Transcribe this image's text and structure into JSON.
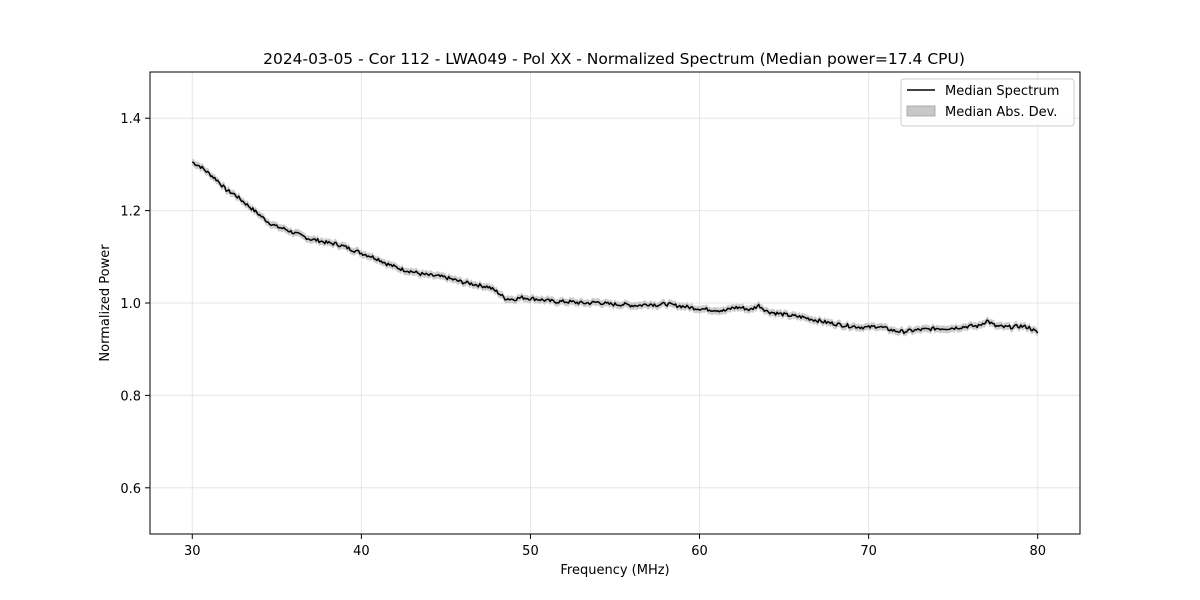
{
  "chart_data": {
    "type": "line",
    "title": "2024-03-05 - Cor 112 - LWA049 - Pol XX - Normalized Spectrum (Median power=17.4 CPU)",
    "xlabel": "Frequency (MHz)",
    "ylabel": "Normalized Power",
    "xlim": [
      27.5,
      82.5
    ],
    "ylim": [
      0.5,
      1.5
    ],
    "x_ticks": [
      30,
      40,
      50,
      60,
      70,
      80
    ],
    "y_ticks": [
      0.6,
      0.8,
      1.0,
      1.2,
      1.4
    ],
    "x_tick_labels": [
      "30",
      "40",
      "50",
      "60",
      "70",
      "80"
    ],
    "y_tick_labels": [
      "0.6",
      "0.8",
      "1.0",
      "1.2",
      "1.4"
    ],
    "grid": true,
    "legend_position": "top-right",
    "legend": [
      "Median Spectrum",
      "Median Abs. Dev."
    ],
    "colors": {
      "line": "#000000",
      "band": "#c8c8c8",
      "grid": "#e6e6e6"
    },
    "series": [
      {
        "name": "Median Spectrum",
        "x": [
          30,
          30.5,
          31,
          31.5,
          32,
          32.5,
          33,
          33.5,
          34,
          34.5,
          35,
          35.5,
          36,
          36.5,
          37,
          37.5,
          38,
          38.5,
          39,
          39.5,
          40,
          40.5,
          41,
          41.5,
          42,
          42.5,
          43,
          43.5,
          44,
          44.5,
          45,
          45.5,
          46,
          46.5,
          47,
          47.5,
          48,
          48.5,
          49,
          49.5,
          50,
          50.5,
          51,
          51.5,
          52,
          52.5,
          53,
          53.5,
          54,
          54.5,
          55,
          55.5,
          56,
          56.5,
          57,
          57.5,
          58,
          58.5,
          59,
          59.5,
          60,
          60.5,
          61,
          61.5,
          62,
          62.5,
          63,
          63.5,
          64,
          64.5,
          65,
          65.5,
          66,
          66.5,
          67,
          67.5,
          68,
          68.5,
          69,
          69.5,
          70,
          70.5,
          71,
          71.5,
          72,
          72.5,
          73,
          73.5,
          74,
          74.5,
          75,
          75.5,
          76,
          76.5,
          77,
          77.5,
          78,
          78.5,
          79,
          79.5,
          80
        ],
        "y": [
          1.305,
          1.295,
          1.28,
          1.265,
          1.245,
          1.235,
          1.22,
          1.205,
          1.19,
          1.175,
          1.165,
          1.16,
          1.152,
          1.145,
          1.138,
          1.135,
          1.13,
          1.128,
          1.122,
          1.115,
          1.108,
          1.102,
          1.095,
          1.085,
          1.078,
          1.072,
          1.068,
          1.063,
          1.06,
          1.058,
          1.055,
          1.05,
          1.045,
          1.042,
          1.038,
          1.035,
          1.025,
          1.01,
          1.008,
          1.012,
          1.01,
          1.008,
          1.005,
          1.003,
          1.003,
          1.002,
          1.0,
          1.0,
          1.002,
          0.998,
          0.997,
          0.997,
          0.995,
          0.995,
          0.998,
          0.996,
          0.998,
          0.995,
          0.993,
          0.99,
          0.988,
          0.986,
          0.985,
          0.983,
          0.99,
          0.99,
          0.985,
          0.995,
          0.982,
          0.978,
          0.975,
          0.972,
          0.97,
          0.966,
          0.962,
          0.958,
          0.955,
          0.952,
          0.95,
          0.948,
          0.947,
          0.95,
          0.945,
          0.94,
          0.938,
          0.94,
          0.942,
          0.943,
          0.945,
          0.945,
          0.946,
          0.948,
          0.95,
          0.95,
          0.962,
          0.95,
          0.948,
          0.948,
          0.95,
          0.947,
          0.935
        ]
      }
    ],
    "band": {
      "name": "Median Abs. Dev.",
      "halfwidth": 0.008
    }
  }
}
